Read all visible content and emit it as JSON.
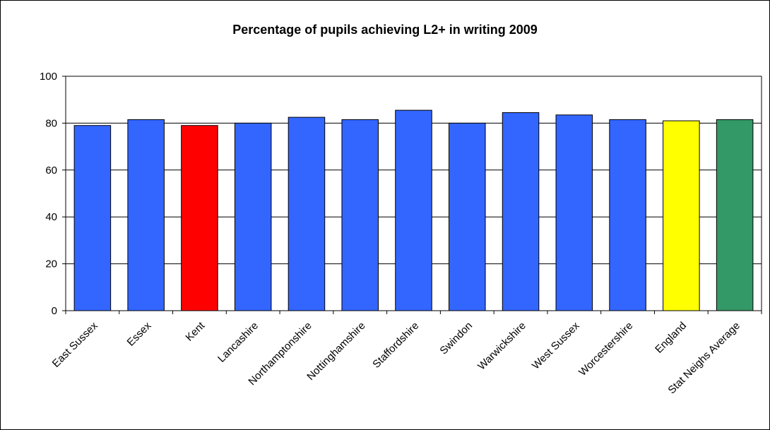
{
  "chart_data": {
    "type": "bar",
    "title": "Percentage of pupils achieving L2+ in writing 2009",
    "xlabel": "",
    "ylabel": "",
    "ylim": [
      0,
      100
    ],
    "yticks": [
      0,
      20,
      40,
      60,
      80,
      100
    ],
    "grid": true,
    "legend": "none",
    "categories": [
      "East Sussex",
      "Essex",
      "Kent",
      "Lancashire",
      "Northamptonshire",
      "Nottinghamshire",
      "Staffordshire",
      "Swindon",
      "Warwickshire",
      "West Sussex",
      "Worcestershire",
      "England",
      "Stat Neighs Average"
    ],
    "values": [
      79,
      81.5,
      79,
      80,
      82.5,
      81.5,
      85.5,
      80,
      84.5,
      83.5,
      81.5,
      81,
      81.5
    ],
    "colors": [
      "#3366ff",
      "#3366ff",
      "#ff0000",
      "#3366ff",
      "#3366ff",
      "#3366ff",
      "#3366ff",
      "#3366ff",
      "#3366ff",
      "#3366ff",
      "#3366ff",
      "#ffff00",
      "#339966"
    ]
  }
}
